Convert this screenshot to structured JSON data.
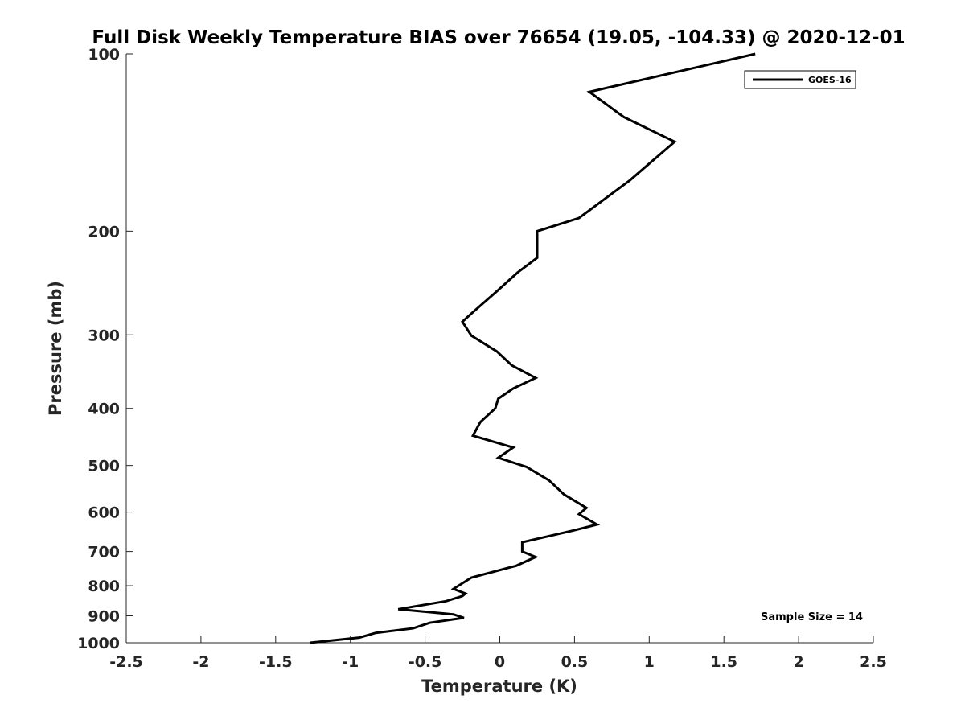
{
  "chart_data": {
    "type": "line",
    "title": "Full Disk Weekly Temperature BIAS over 76654 (19.05, -104.33) @ 2020-12-01",
    "xlabel": "Temperature (K)",
    "ylabel": "Pressure (mb)",
    "xlim": [
      -2.5,
      2.5
    ],
    "ylim": [
      100,
      1000
    ],
    "y_scale": "log",
    "y_reversed": true,
    "grid": false,
    "x_ticks": [
      "-2.5",
      "-2",
      "-1.5",
      "-1",
      "-0.5",
      "0",
      "0.5",
      "1",
      "1.5",
      "2",
      "2.5"
    ],
    "y_ticks": [
      "100",
      "200",
      "300",
      "400",
      "500",
      "600",
      "700",
      "800",
      "900",
      "1000"
    ],
    "legend": {
      "placement": "top-right",
      "entries": [
        "GOES-16"
      ]
    },
    "annotation": "Sample Size = 14",
    "line_color": "#000000",
    "series": [
      {
        "name": "GOES-16",
        "x": [
          1.71,
          0.6,
          0.83,
          1.17,
          0.87,
          0.53,
          0.25,
          0.25,
          0.25,
          0.12,
          -0.02,
          -0.19,
          -0.25,
          -0.19,
          -0.02,
          0.08,
          0.24,
          0.09,
          -0.01,
          -0.03,
          -0.13,
          -0.18,
          0.09,
          -0.01,
          0.18,
          0.33,
          0.43,
          0.58,
          0.53,
          0.65,
          0.49,
          0.15,
          0.15,
          0.24,
          0.11,
          -0.19,
          -0.31,
          -0.23,
          -0.25,
          -0.36,
          -0.68,
          -0.31,
          -0.24,
          -0.47,
          -0.58,
          -0.83,
          -0.94,
          -1.27
        ],
        "y": [
          100,
          116,
          128,
          141,
          164,
          190,
          200,
          215,
          222,
          235,
          253,
          276,
          285,
          301,
          320,
          338,
          355,
          370,
          385,
          400,
          422,
          445,
          466,
          485,
          503,
          530,
          560,
          590,
          605,
          630,
          645,
          675,
          700,
          715,
          740,
          775,
          810,
          825,
          833,
          850,
          877,
          895,
          907,
          925,
          945,
          962,
          980,
          1000
        ]
      }
    ]
  }
}
